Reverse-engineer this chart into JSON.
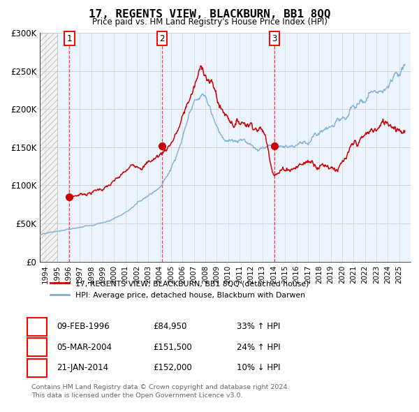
{
  "title": "17, REGENTS VIEW, BLACKBURN, BB1 8QQ",
  "subtitle": "Price paid vs. HM Land Registry's House Price Index (HPI)",
  "legend_line1": "17, REGENTS VIEW, BLACKBURN, BB1 8QQ (detached house)",
  "legend_line2": "HPI: Average price, detached house, Blackburn with Darwen",
  "transactions": [
    {
      "num": 1,
      "date": "09-FEB-1996",
      "year": 1996.1,
      "price": 84950,
      "hpi_pct": "33% ↑ HPI"
    },
    {
      "num": 2,
      "date": "05-MAR-2004",
      "year": 2004.2,
      "price": 151500,
      "hpi_pct": "24% ↑ HPI"
    },
    {
      "num": 3,
      "date": "21-JAN-2014",
      "year": 2014.05,
      "price": 152000,
      "hpi_pct": "10% ↓ HPI"
    }
  ],
  "footer1": "Contains HM Land Registry data © Crown copyright and database right 2024.",
  "footer2": "This data is licensed under the Open Government Licence v3.0.",
  "hpi_color": "#7aadd4",
  "price_color": "#cc0000",
  "hatch_end_year": 1995.0,
  "xmin": 1993.5,
  "xmax": 2026.0,
  "ymin": 0,
  "ymax": 300000,
  "table_data": [
    [
      "1",
      "09-FEB-1996",
      "£84,950",
      "33% ↑ HPI"
    ],
    [
      "2",
      "05-MAR-2004",
      "£151,500",
      "24% ↑ HPI"
    ],
    [
      "3",
      "21-JAN-2014",
      "£152,000",
      "10% ↓ HPI"
    ]
  ]
}
